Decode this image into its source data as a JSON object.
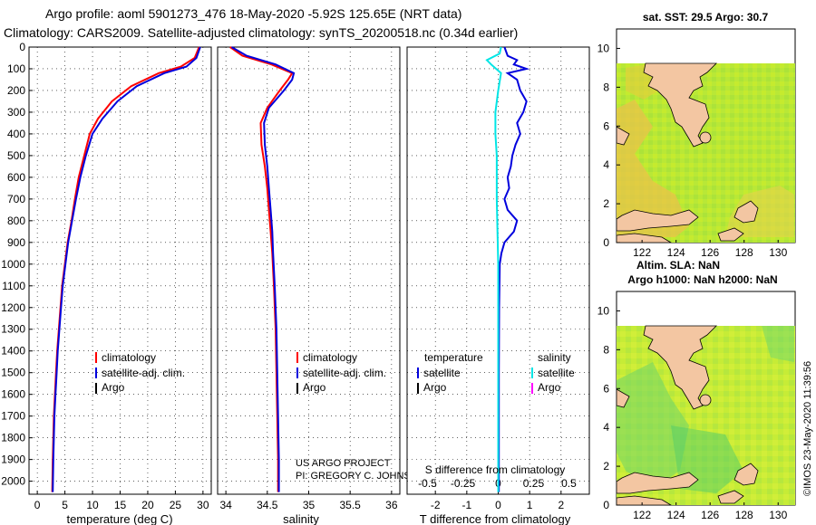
{
  "header": {
    "line1": "Argo profile: aoml 5901273_476 18-May-2020 -5.92S 125.65E (NRT data)",
    "line2": "Climatology: CARS2009. Satellite-adjusted climatology: synTS_20200518.nc (0.34d earlier)"
  },
  "credit": "©IMOS 23-May-2020 11:39:56",
  "colors": {
    "red": "#ff0000",
    "blue": "#0000dd",
    "argo": "#000000",
    "cyan": "#00e5e5",
    "magenta": "#ff00ff",
    "land": "#f3c6a2"
  },
  "chart_data": [
    {
      "type": "line",
      "name": "temperature-profile",
      "xlabel": "temperature (deg C)",
      "ylabel": "",
      "xlim": [
        -1.5,
        31.5
      ],
      "ylim": [
        2060,
        0
      ],
      "xticks": [
        "0",
        "5",
        "10",
        "15",
        "20",
        "25",
        "30"
      ],
      "yticks": [
        "0",
        "100",
        "200",
        "300",
        "400",
        "500",
        "600",
        "700",
        "800",
        "900",
        "1000",
        "1100",
        "1200",
        "1300",
        "1400",
        "1500",
        "1600",
        "1700",
        "1800",
        "1900",
        "2000"
      ],
      "legend": [
        "climatology",
        "satellite-adj. clim.",
        "Argo"
      ],
      "series": [
        {
          "name": "climatology",
          "color": "#ff0000",
          "points": [
            [
              29.3,
              0
            ],
            [
              28.5,
              50
            ],
            [
              26,
              90
            ],
            [
              22,
              120
            ],
            [
              17,
              180
            ],
            [
              13.5,
              250
            ],
            [
              11,
              330
            ],
            [
              9.5,
              400
            ],
            [
              8.5,
              500
            ],
            [
              7.5,
              600
            ],
            [
              6.8,
              700
            ],
            [
              6.2,
              800
            ],
            [
              5.5,
              900
            ],
            [
              5,
              1000
            ],
            [
              4.5,
              1100
            ],
            [
              4.2,
              1200
            ],
            [
              3.9,
              1300
            ],
            [
              3.6,
              1400
            ],
            [
              3.4,
              1500
            ],
            [
              3.2,
              1600
            ],
            [
              3,
              1700
            ],
            [
              2.9,
              1800
            ],
            [
              2.8,
              1900
            ],
            [
              2.7,
              2050
            ]
          ]
        },
        {
          "name": "satellite-adj. clim.",
          "color": "#0000dd",
          "points": [
            [
              29.5,
              0
            ],
            [
              28.8,
              50
            ],
            [
              27,
              90
            ],
            [
              23,
              120
            ],
            [
              18,
              180
            ],
            [
              14.5,
              250
            ],
            [
              11.8,
              330
            ],
            [
              10,
              400
            ],
            [
              8.8,
              500
            ],
            [
              7.8,
              600
            ],
            [
              7,
              700
            ],
            [
              6.3,
              800
            ],
            [
              5.6,
              900
            ],
            [
              5.1,
              1000
            ],
            [
              4.6,
              1100
            ],
            [
              4.3,
              1200
            ],
            [
              4,
              1300
            ],
            [
              3.7,
              1400
            ],
            [
              3.5,
              1500
            ],
            [
              3.3,
              1600
            ],
            [
              3.1,
              1700
            ],
            [
              3,
              1800
            ],
            [
              2.9,
              1900
            ],
            [
              2.8,
              2050
            ]
          ]
        }
      ]
    },
    {
      "type": "line",
      "name": "salinity-profile",
      "xlabel": "salinity",
      "xlim": [
        33.9,
        36.1
      ],
      "xticks": [
        "34",
        "34.5",
        "35",
        "35.5",
        "36"
      ],
      "legend": [
        "climatology",
        "satellite-adj. clim.",
        "Argo"
      ],
      "series": [
        {
          "name": "climatology",
          "color": "#ff0000",
          "points": [
            [
              34.05,
              0
            ],
            [
              34.2,
              40
            ],
            [
              34.55,
              80
            ],
            [
              34.8,
              120
            ],
            [
              34.75,
              150
            ],
            [
              34.65,
              200
            ],
            [
              34.5,
              280
            ],
            [
              34.42,
              350
            ],
            [
              34.43,
              450
            ],
            [
              34.47,
              550
            ],
            [
              34.5,
              650
            ],
            [
              34.52,
              750
            ],
            [
              34.54,
              850
            ],
            [
              34.56,
              950
            ],
            [
              34.58,
              1100
            ],
            [
              34.6,
              1300
            ],
            [
              34.61,
              1500
            ],
            [
              34.62,
              1700
            ],
            [
              34.63,
              1900
            ],
            [
              34.63,
              2050
            ]
          ]
        },
        {
          "name": "satellite-adj. clim.",
          "color": "#0000dd",
          "points": [
            [
              34.07,
              0
            ],
            [
              34.25,
              40
            ],
            [
              34.6,
              80
            ],
            [
              34.82,
              120
            ],
            [
              34.8,
              150
            ],
            [
              34.7,
              200
            ],
            [
              34.52,
              280
            ],
            [
              34.46,
              350
            ],
            [
              34.47,
              450
            ],
            [
              34.5,
              550
            ],
            [
              34.52,
              650
            ],
            [
              34.54,
              750
            ],
            [
              34.56,
              850
            ],
            [
              34.57,
              950
            ],
            [
              34.59,
              1100
            ],
            [
              34.61,
              1300
            ],
            [
              34.62,
              1500
            ],
            [
              34.63,
              1700
            ],
            [
              34.64,
              1900
            ],
            [
              34.64,
              2050
            ]
          ]
        }
      ]
    },
    {
      "type": "line",
      "name": "difference-profile",
      "xlabel": "T difference from climatology",
      "xlabel2": "S difference from climatology",
      "xlim": [
        -2.9,
        2.9
      ],
      "xticks": [
        "-2",
        "-1",
        "0",
        "1",
        "2"
      ],
      "xticks2": [
        "-0.5",
        "-0.25",
        "0",
        "0.25",
        "0.5"
      ],
      "legend_left_title": "temperature",
      "legend_right_title": "salinity",
      "legend_left": [
        "satellite",
        "Argo"
      ],
      "legend_right": [
        "satellite",
        "Argo"
      ],
      "series": [
        {
          "name": "T satellite",
          "color": "#0000dd",
          "points": [
            [
              0.2,
              0
            ],
            [
              0.3,
              40
            ],
            [
              0.6,
              60
            ],
            [
              0.5,
              80
            ],
            [
              0.9,
              100
            ],
            [
              0.3,
              120
            ],
            [
              0.6,
              150
            ],
            [
              0.7,
              200
            ],
            [
              0.9,
              250
            ],
            [
              0.8,
              300
            ],
            [
              0.6,
              350
            ],
            [
              0.7,
              400
            ],
            [
              0.55,
              450
            ],
            [
              0.45,
              500
            ],
            [
              0.4,
              550
            ],
            [
              0.3,
              600
            ],
            [
              0.35,
              650
            ],
            [
              0.2,
              700
            ],
            [
              0.3,
              750
            ],
            [
              0.6,
              800
            ],
            [
              0.5,
              850
            ],
            [
              0.2,
              900
            ],
            [
              0.1,
              950
            ],
            [
              0.05,
              1000
            ],
            [
              0.03,
              1200
            ],
            [
              0.02,
              1500
            ],
            [
              0.02,
              2050
            ]
          ]
        },
        {
          "name": "S satellite",
          "color": "#00e5e5",
          "points": [
            [
              0.02,
              0
            ],
            [
              0.01,
              30
            ],
            [
              -0.08,
              60
            ],
            [
              -0.05,
              80
            ],
            [
              0.02,
              120
            ],
            [
              0,
              200
            ],
            [
              -0.02,
              300
            ],
            [
              -0.02,
              400
            ],
            [
              -0.01,
              500
            ],
            [
              -0.01,
              700
            ],
            [
              0,
              1000
            ],
            [
              0,
              2050
            ]
          ]
        }
      ]
    },
    {
      "type": "heatmap",
      "name": "sst-map",
      "title": "sat. SST: 29.5 Argo: 30.7",
      "xlim": [
        120.5,
        131
      ],
      "ylim": [
        0,
        11
      ],
      "xticks": [
        "122",
        "124",
        "126",
        "128",
        "130"
      ],
      "yticks": [
        "0",
        "2",
        "4",
        "6",
        "8",
        "10"
      ]
    },
    {
      "type": "heatmap",
      "name": "sla-map",
      "title1": "Altim. SLA: NaN",
      "title2": "Argo h1000: NaN h2000: NaN",
      "xlim": [
        120.5,
        131
      ],
      "ylim": [
        0,
        11
      ],
      "xticks": [
        "122",
        "124",
        "126",
        "128",
        "130"
      ],
      "yticks": [
        "0",
        "2",
        "4",
        "6",
        "8",
        "10"
      ]
    }
  ],
  "footer": {
    "project": "US ARGO PROJECT",
    "pi": "PI: GREGORY C. JOHNSON"
  }
}
